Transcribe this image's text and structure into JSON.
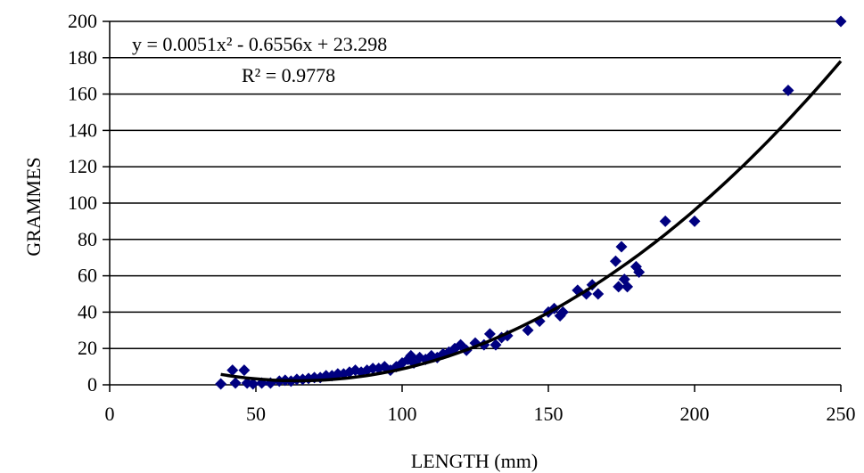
{
  "chart_data": {
    "type": "scatter",
    "xlabel": "LENGTH (mm)",
    "ylabel": "GRAMMES",
    "xlim": [
      0,
      250
    ],
    "ylim": [
      0,
      200
    ],
    "x_ticks": [
      0,
      50,
      100,
      150,
      200,
      250
    ],
    "y_ticks": [
      0,
      20,
      40,
      60,
      80,
      100,
      120,
      140,
      160,
      180,
      200
    ],
    "grid": "horizontal",
    "marker_color": "#000080",
    "trendline": {
      "type": "polynomial",
      "coefficients": [
        0.0051,
        -0.6556,
        23.298
      ],
      "x_range": [
        38,
        250
      ],
      "color": "#000000",
      "equation_label": "y = 0.0051x² - 0.6556x + 23.298",
      "r2_label": "R² = 0.9778"
    },
    "points": [
      [
        38,
        0.5
      ],
      [
        42,
        8
      ],
      [
        43,
        1
      ],
      [
        46,
        8
      ],
      [
        47,
        1
      ],
      [
        49,
        0.5
      ],
      [
        52,
        1
      ],
      [
        55,
        1
      ],
      [
        58,
        2
      ],
      [
        60,
        2.5
      ],
      [
        62,
        2
      ],
      [
        64,
        3
      ],
      [
        66,
        3
      ],
      [
        68,
        3.5
      ],
      [
        70,
        4
      ],
      [
        72,
        4
      ],
      [
        74,
        5
      ],
      [
        76,
        5
      ],
      [
        78,
        6
      ],
      [
        80,
        6
      ],
      [
        82,
        7
      ],
      [
        84,
        8
      ],
      [
        86,
        7
      ],
      [
        88,
        8
      ],
      [
        90,
        9
      ],
      [
        92,
        9
      ],
      [
        94,
        10
      ],
      [
        96,
        8
      ],
      [
        98,
        10
      ],
      [
        100,
        12
      ],
      [
        102,
        14
      ],
      [
        103,
        16
      ],
      [
        104,
        12
      ],
      [
        106,
        15
      ],
      [
        108,
        14
      ],
      [
        110,
        16
      ],
      [
        112,
        15
      ],
      [
        114,
        17
      ],
      [
        116,
        18
      ],
      [
        118,
        20
      ],
      [
        120,
        22
      ],
      [
        122,
        19
      ],
      [
        125,
        23
      ],
      [
        128,
        22
      ],
      [
        130,
        28
      ],
      [
        132,
        22
      ],
      [
        134,
        26
      ],
      [
        136,
        27
      ],
      [
        143,
        30
      ],
      [
        147,
        35
      ],
      [
        150,
        40
      ],
      [
        152,
        42
      ],
      [
        154,
        38
      ],
      [
        155,
        40
      ],
      [
        160,
        52
      ],
      [
        163,
        50
      ],
      [
        165,
        55
      ],
      [
        167,
        50
      ],
      [
        173,
        68
      ],
      [
        174,
        54
      ],
      [
        175,
        76
      ],
      [
        176,
        58
      ],
      [
        177,
        54
      ],
      [
        180,
        65
      ],
      [
        181,
        62
      ],
      [
        190,
        90
      ],
      [
        200,
        90
      ],
      [
        232,
        162
      ],
      [
        250,
        200
      ]
    ]
  }
}
